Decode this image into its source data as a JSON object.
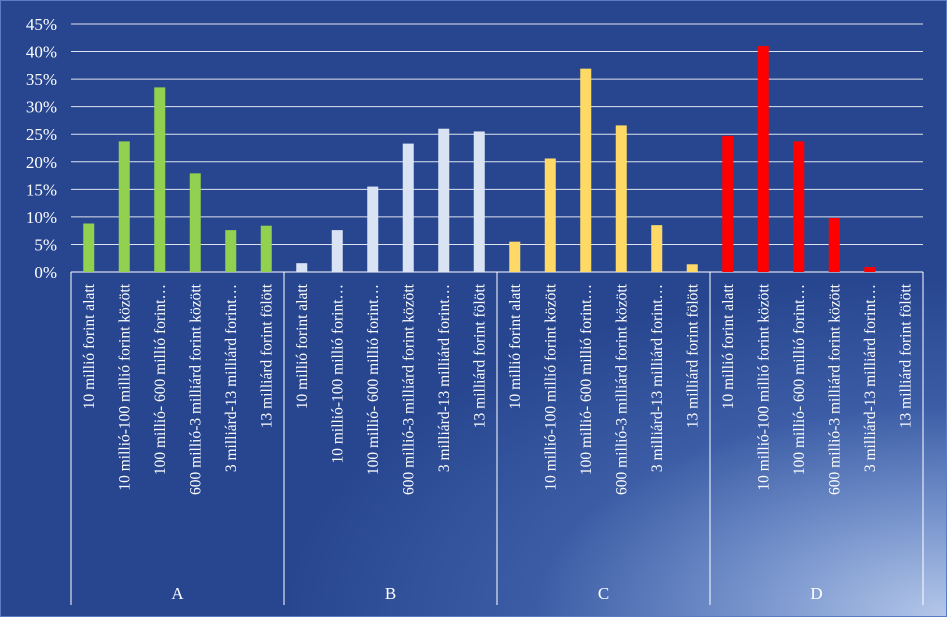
{
  "chart_data": {
    "type": "bar",
    "ylim": [
      0,
      45
    ],
    "y_ticks": [
      "0%",
      "5%",
      "10%",
      "15%",
      "20%",
      "25%",
      "30%",
      "35%",
      "40%",
      "45%"
    ],
    "grid": true,
    "groups": [
      {
        "label": "A",
        "color": "#92d050",
        "categories": [
          "10 millió forint alatt",
          "10 millió-100 millió forint között",
          "100 millió- 600 millió forint…",
          "600 millió-3 milliárd forint között",
          "3 milliárd-13 milliárd forint…",
          "13 milliárd forint fölött"
        ],
        "values": [
          8.8,
          23.7,
          33.5,
          17.9,
          7.6,
          8.4
        ]
      },
      {
        "label": "B",
        "color": "#dae3f3",
        "categories": [
          "10 millió forint alatt",
          "10 millió-100 millió forint…",
          "100 millió- 600 millió forint…",
          "600 millió-3 milliárd forint között",
          "3 milliárd-13 milliárd forint…",
          "13 milliárd forint fölött"
        ],
        "values": [
          1.6,
          7.6,
          15.5,
          23.3,
          26.0,
          25.5
        ]
      },
      {
        "label": "C",
        "color": "#ffd966",
        "categories": [
          "10 millió forint alatt",
          "10 millió-100 millió forint között",
          "100 millió- 600 millió forint…",
          "600 millió-3 milliárd forint között",
          "3 milliárd-13 milliárd forint…",
          "13 milliárd forint fölött"
        ],
        "values": [
          5.5,
          20.6,
          36.9,
          26.6,
          8.5,
          1.4
        ]
      },
      {
        "label": "D",
        "color": "#ff0000",
        "categories": [
          "10 millió forint alatt",
          "10 millió-100 millió forint között",
          "100 millió- 600 millió forint…",
          "600 millió-3 milliárd forint között",
          "3 milliárd-13 milliárd forint…",
          "13 milliárd forint fölött"
        ],
        "values": [
          24.7,
          41.0,
          23.7,
          9.8,
          0.9,
          0
        ]
      }
    ]
  }
}
